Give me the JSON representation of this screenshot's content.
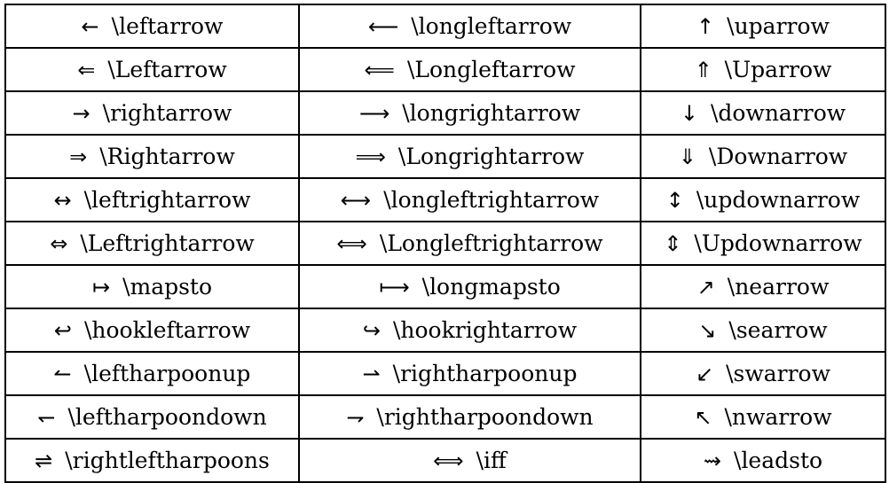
{
  "rows": [
    [
      {
        "symbol": "←",
        "command": "\\leftarrow"
      },
      {
        "symbol": "⟵",
        "command": "\\longleftarrow"
      },
      {
        "symbol": "↑",
        "command": "\\uparrow"
      }
    ],
    [
      {
        "symbol": "⇐",
        "command": "\\Leftarrow"
      },
      {
        "symbol": "⟸",
        "command": "\\Longleftarrow"
      },
      {
        "symbol": "⇑",
        "command": "\\Uparrow"
      }
    ],
    [
      {
        "symbol": "→",
        "command": "\\rightarrow"
      },
      {
        "symbol": "⟶",
        "command": "\\longrightarrow"
      },
      {
        "symbol": "↓",
        "command": "\\downarrow"
      }
    ],
    [
      {
        "symbol": "⇒",
        "command": "\\Rightarrow"
      },
      {
        "symbol": "⟹",
        "command": "\\Longrightarrow"
      },
      {
        "symbol": "⇓",
        "command": "\\Downarrow"
      }
    ],
    [
      {
        "symbol": "↔",
        "command": "\\leftrightarrow"
      },
      {
        "symbol": "⟷",
        "command": "\\longleftrightarrow"
      },
      {
        "symbol": "↕",
        "command": "\\updownarrow"
      }
    ],
    [
      {
        "symbol": "⇔",
        "command": "\\Leftrightarrow"
      },
      {
        "symbol": "⟺",
        "command": "\\Longleftrightarrow"
      },
      {
        "symbol": "⇕",
        "command": "\\Updownarrow"
      }
    ],
    [
      {
        "symbol": "↦",
        "command": "\\mapsto"
      },
      {
        "symbol": "⟼",
        "command": "\\longmapsto"
      },
      {
        "symbol": "↗",
        "command": "\\nearrow"
      }
    ],
    [
      {
        "symbol": "↩",
        "command": "\\hookleftarrow"
      },
      {
        "symbol": "↪",
        "command": "\\hookrightarrow"
      },
      {
        "symbol": "↘",
        "command": "\\searrow"
      }
    ],
    [
      {
        "symbol": "↼",
        "command": "\\leftharpoonup"
      },
      {
        "symbol": "⇀",
        "command": "\\rightharpoonup"
      },
      {
        "symbol": "↙",
        "command": "\\swarrow"
      }
    ],
    [
      {
        "symbol": "↽",
        "command": "\\leftharpoondown"
      },
      {
        "symbol": "⇁",
        "command": "\\rightharpoondown"
      },
      {
        "symbol": "↖",
        "command": "\\nwarrow"
      }
    ],
    [
      {
        "symbol": "⇌",
        "command": "\\rightleftharpoons"
      },
      {
        "symbol": "⟺",
        "command": "\\iff"
      },
      {
        "symbol": "⇝",
        "command": "\\leadsto"
      }
    ]
  ]
}
